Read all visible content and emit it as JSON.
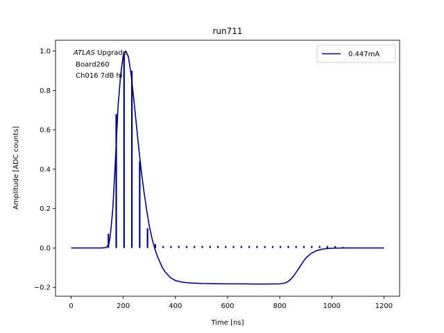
{
  "chart_data": {
    "type": "line",
    "title": "run711",
    "xlabel": "Time [ns]",
    "ylabel": "Amplitude [ADC counts]",
    "xlim": [
      -60,
      1260
    ],
    "ylim": [
      -0.245,
      1.055
    ],
    "x_ticks": [
      0,
      200,
      400,
      600,
      800,
      1000,
      1200
    ],
    "y_ticks": [
      -0.2,
      0.0,
      0.2,
      0.4,
      0.6,
      0.8,
      1.0
    ],
    "x_tick_labels": [
      "0",
      "200",
      "400",
      "600",
      "800",
      "1000",
      "1200"
    ],
    "y_tick_labels": [
      "−0.2",
      "0.0",
      "0.2",
      "0.4",
      "0.6",
      "0.8",
      "1.0"
    ],
    "grid": false,
    "legend_position": "top-right",
    "color": "#000080",
    "annotation": {
      "italic_prefix": "ATLAS",
      "line1_rest": " Upgrade",
      "line2": " Board260",
      "line3": " Ch016 7dB hi"
    },
    "series": [
      {
        "name": "0.447mA",
        "x": [
          0,
          120,
          135,
          145,
          150,
          160,
          170,
          180,
          190,
          200,
          210,
          220,
          230,
          240,
          250,
          260,
          270,
          280,
          290,
          300,
          310,
          320,
          330,
          340,
          350,
          360,
          370,
          380,
          400,
          420,
          440,
          460,
          480,
          500,
          550,
          600,
          650,
          700,
          750,
          800,
          820,
          830,
          840,
          850,
          860,
          870,
          880,
          890,
          900,
          920,
          940,
          960,
          980,
          1000,
          1050,
          1100,
          1150,
          1200
        ],
        "y": [
          0.0,
          0.0,
          0.003,
          0.02,
          0.06,
          0.2,
          0.45,
          0.72,
          0.88,
          0.98,
          1.0,
          0.97,
          0.88,
          0.76,
          0.63,
          0.5,
          0.38,
          0.28,
          0.19,
          0.11,
          0.05,
          0.0,
          -0.04,
          -0.07,
          -0.1,
          -0.12,
          -0.135,
          -0.15,
          -0.165,
          -0.172,
          -0.176,
          -0.178,
          -0.179,
          -0.18,
          -0.181,
          -0.182,
          -0.182,
          -0.183,
          -0.183,
          -0.182,
          -0.178,
          -0.172,
          -0.162,
          -0.148,
          -0.13,
          -0.11,
          -0.09,
          -0.07,
          -0.052,
          -0.028,
          -0.014,
          -0.007,
          -0.003,
          -0.001,
          0.0,
          0.0,
          0.0,
          0.0
        ]
      }
    ],
    "sample_x": [
      143,
      173,
      203,
      233,
      263,
      293,
      323,
      353,
      383,
      413,
      443,
      473,
      503,
      533,
      563,
      593,
      623,
      653,
      683,
      713,
      743,
      773,
      803,
      833,
      863,
      893,
      923,
      953,
      983,
      1013,
      1043,
      1073
    ],
    "sample_y": [
      0.072,
      0.68,
      0.99,
      0.9,
      0.44,
      0.1,
      0.02,
      0.01,
      0.01,
      0.01,
      0.01,
      0.01,
      0.01,
      0.01,
      0.01,
      0.01,
      0.01,
      0.01,
      0.01,
      0.01,
      0.01,
      0.01,
      0.01,
      0.01,
      0.01,
      0.01,
      0.01,
      0.01,
      0.01,
      0.01,
      0.005,
      0.003
    ]
  }
}
